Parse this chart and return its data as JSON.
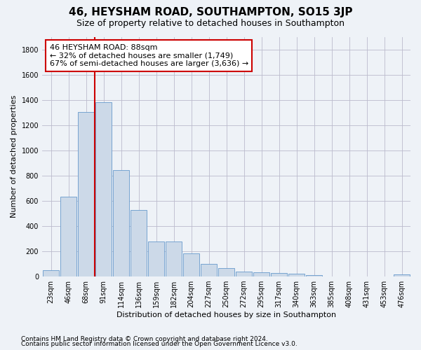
{
  "title": "46, HEYSHAM ROAD, SOUTHAMPTON, SO15 3JP",
  "subtitle": "Size of property relative to detached houses in Southampton",
  "xlabel": "Distribution of detached houses by size in Southampton",
  "ylabel": "Number of detached properties",
  "bar_color": "#ccd9e8",
  "bar_edge_color": "#6699cc",
  "categories": [
    "23sqm",
    "46sqm",
    "68sqm",
    "91sqm",
    "114sqm",
    "136sqm",
    "159sqm",
    "182sqm",
    "204sqm",
    "227sqm",
    "250sqm",
    "272sqm",
    "295sqm",
    "317sqm",
    "340sqm",
    "363sqm",
    "385sqm",
    "408sqm",
    "431sqm",
    "453sqm",
    "476sqm"
  ],
  "values": [
    50,
    635,
    1305,
    1380,
    845,
    525,
    275,
    275,
    185,
    100,
    65,
    37,
    35,
    30,
    22,
    12,
    0,
    0,
    0,
    0,
    15
  ],
  "ylim": [
    0,
    1900
  ],
  "yticks": [
    0,
    200,
    400,
    600,
    800,
    1000,
    1200,
    1400,
    1600,
    1800
  ],
  "vline_pos": 2.5,
  "annotation_line1": "46 HEYSHAM ROAD: 88sqm",
  "annotation_line2": "← 32% of detached houses are smaller (1,749)",
  "annotation_line3": "67% of semi-detached houses are larger (3,636) →",
  "annotation_box_color": "#ffffff",
  "annotation_box_edge": "#cc0000",
  "vline_color": "#cc0000",
  "footnote1": "Contains HM Land Registry data © Crown copyright and database right 2024.",
  "footnote2": "Contains public sector information licensed under the Open Government Licence v3.0.",
  "background_color": "#eef2f7",
  "grid_color": "#bbbbcc",
  "title_fontsize": 11,
  "subtitle_fontsize": 9,
  "axis_label_fontsize": 8,
  "tick_fontsize": 7,
  "annotation_fontsize": 8,
  "footnote_fontsize": 6.5
}
